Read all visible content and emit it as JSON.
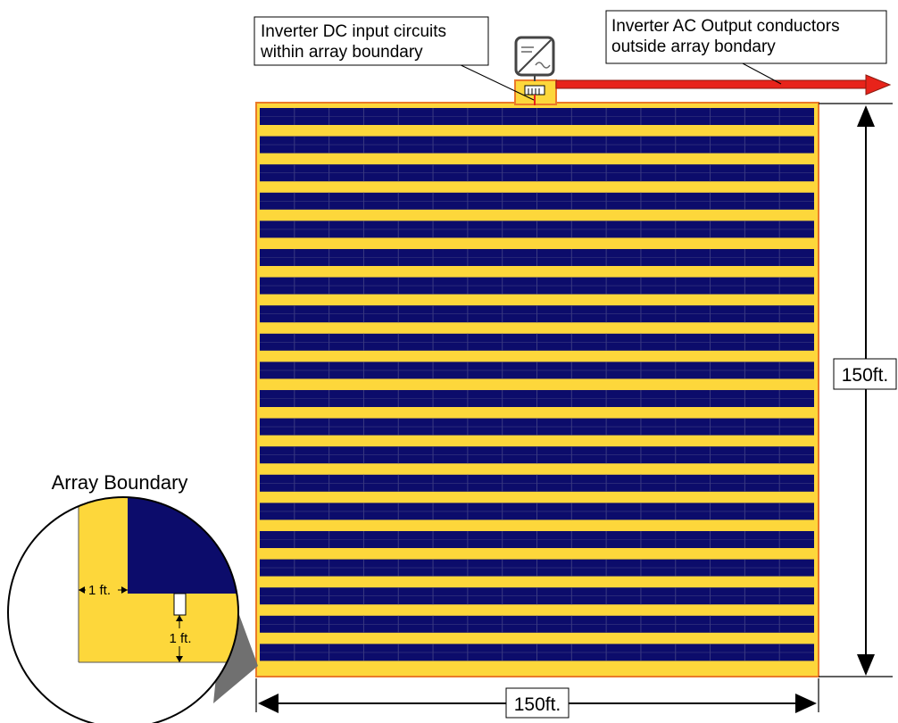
{
  "callouts": {
    "dc_input_line1": "Inverter DC input circuits",
    "dc_input_line2": "within array boundary",
    "ac_output_line1": "Inverter AC Output conductors",
    "ac_output_line2": "outside array bondary"
  },
  "dimensions": {
    "height_label": "150ft.",
    "width_label": "150ft."
  },
  "detail": {
    "title": "Array Boundary",
    "horizontal_gap": "1 ft.",
    "vertical_gap": "1 ft."
  },
  "array": {
    "rows": 20,
    "modules_per_row": 16
  },
  "colors": {
    "boundary_fill": "#fdd73b",
    "boundary_edge": "#ea7a2a",
    "module_fill": "#0c0c6b",
    "module_divider": "#3a3a80",
    "ac_arrow": "#e8231a",
    "dimension_line": "#000000"
  },
  "icons": {
    "inverter": "inverter-icon",
    "combiner": "combiner-box-icon"
  }
}
